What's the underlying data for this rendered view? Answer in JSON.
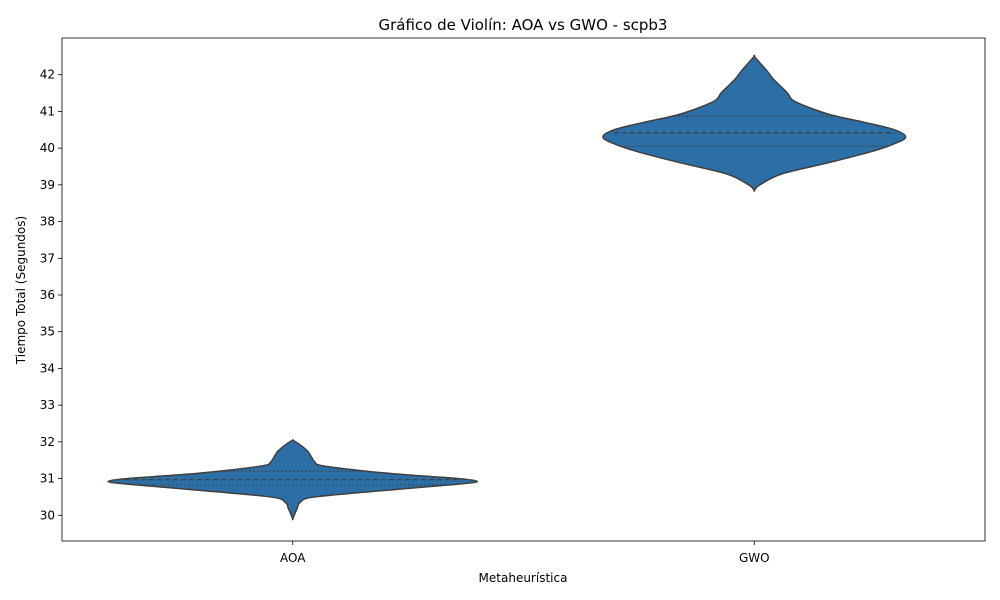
{
  "chart_data": {
    "type": "violin",
    "title": "Gráfico de Violín: AOA vs GWO - scpb3",
    "xlabel": "Metaheurística",
    "ylabel": "Tiempo Total (Segundos)",
    "categories": [
      "AOA",
      "GWO"
    ],
    "ylim": [
      29.3,
      43.0
    ],
    "yticks": [
      30,
      31,
      32,
      33,
      34,
      35,
      36,
      37,
      38,
      39,
      40,
      41,
      42
    ],
    "grid": false,
    "colors": {
      "fill": "#2b6fa6",
      "edge": "#3f3f3f",
      "axis": "#000000"
    },
    "violins": [
      {
        "name": "AOA",
        "min": 29.9,
        "max": 32.05,
        "quartiles": {
          "q1": 30.83,
          "median": 30.97,
          "q3": 31.2
        },
        "density_profile": [
          [
            29.9,
            0.0
          ],
          [
            30.05,
            0.012
          ],
          [
            30.2,
            0.025
          ],
          [
            30.35,
            0.04
          ],
          [
            30.5,
            0.12
          ],
          [
            30.7,
            0.55
          ],
          [
            30.85,
            0.9
          ],
          [
            30.92,
            1.0
          ],
          [
            31.0,
            0.9
          ],
          [
            31.1,
            0.62
          ],
          [
            31.2,
            0.4
          ],
          [
            31.35,
            0.16
          ],
          [
            31.45,
            0.12
          ],
          [
            31.6,
            0.1
          ],
          [
            31.75,
            0.08
          ],
          [
            31.9,
            0.045
          ],
          [
            32.0,
            0.015
          ],
          [
            32.05,
            0.0
          ]
        ]
      },
      {
        "name": "GWO",
        "min": 38.85,
        "max": 42.5,
        "quartiles": {
          "q1": 40.05,
          "median": 40.42,
          "q3": 40.87
        },
        "density_profile": [
          [
            38.85,
            0.0
          ],
          [
            39.0,
            0.03
          ],
          [
            39.3,
            0.15
          ],
          [
            39.6,
            0.4
          ],
          [
            39.9,
            0.63
          ],
          [
            40.1,
            0.75
          ],
          [
            40.3,
            0.82
          ],
          [
            40.5,
            0.76
          ],
          [
            40.7,
            0.6
          ],
          [
            40.9,
            0.42
          ],
          [
            41.1,
            0.3
          ],
          [
            41.3,
            0.21
          ],
          [
            41.5,
            0.18
          ],
          [
            41.7,
            0.14
          ],
          [
            41.9,
            0.1
          ],
          [
            42.1,
            0.07
          ],
          [
            42.3,
            0.035
          ],
          [
            42.5,
            0.0
          ]
        ]
      }
    ]
  }
}
